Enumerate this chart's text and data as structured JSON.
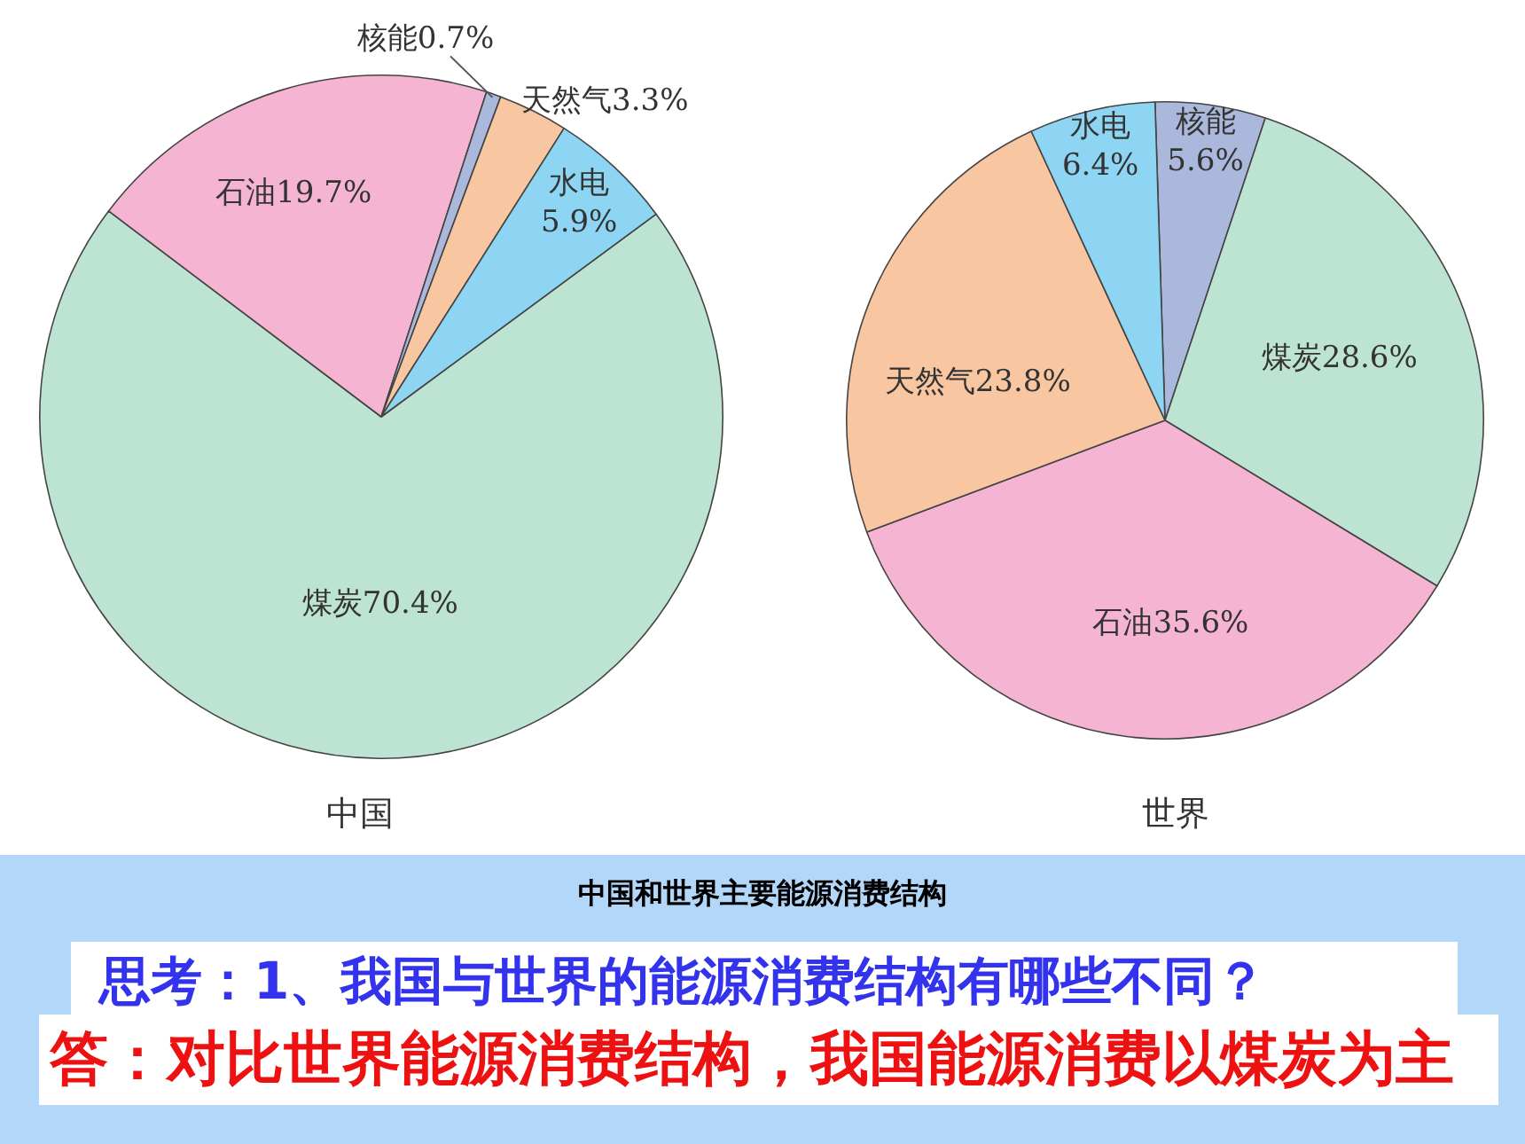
{
  "chart_data": [
    {
      "type": "pie",
      "title": "中国",
      "categories": [
        "煤炭",
        "石油",
        "核能",
        "天然气",
        "水电"
      ],
      "values": [
        70.4,
        19.7,
        0.7,
        3.3,
        5.9
      ],
      "value_labels": [
        "70.4%",
        "19.7%",
        "0.7%",
        "3.3%",
        "5.9%"
      ],
      "colors": [
        "#bde3d3",
        "#f5b5d2",
        "#aab8dc",
        "#f9c6a2",
        "#8dd5f3"
      ]
    },
    {
      "type": "pie",
      "title": "世界",
      "categories": [
        "核能",
        "煤炭",
        "石油",
        "天然气",
        "水电"
      ],
      "values": [
        5.6,
        28.6,
        35.6,
        23.8,
        6.4
      ],
      "value_labels": [
        "5.6%",
        "28.6%",
        "35.6%",
        "23.8%",
        "6.4%"
      ],
      "colors": [
        "#aab8dc",
        "#bde3d3",
        "#f5b5d2",
        "#f9c6a2",
        "#8dd5f3"
      ],
      "annotations": [
        "中国和世界主要能源消费结构",
        "思考：1、我国与世界的能源消费结构有哪些不同？",
        "答：对比世界能源消费结构，我国能源消费以煤炭为主"
      ]
    }
  ]
}
